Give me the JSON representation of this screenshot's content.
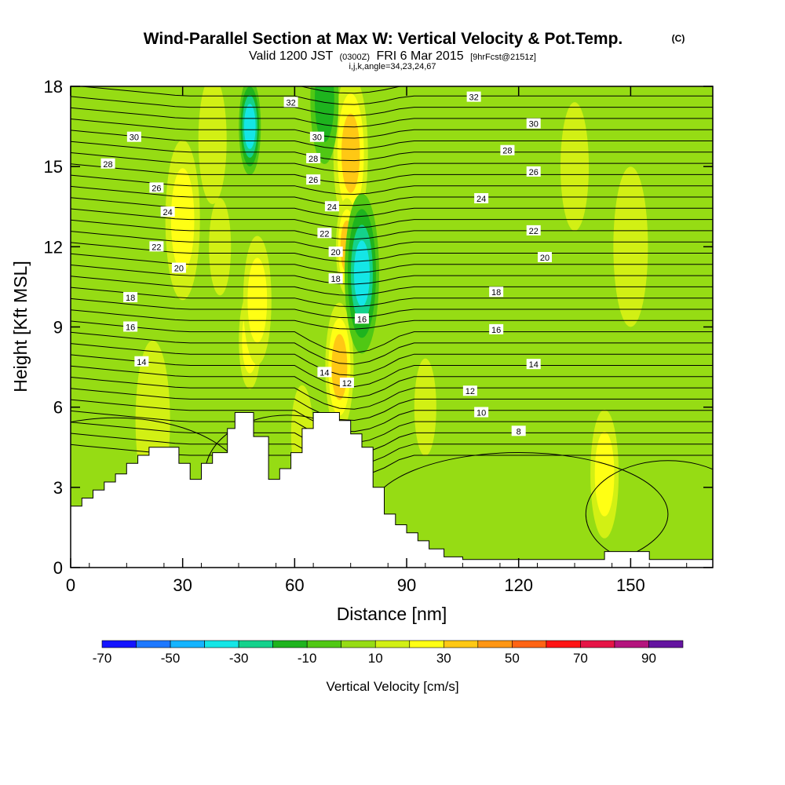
{
  "figure": {
    "title": "Wind-Parallel Section at Max W: Vertical Velocity & Pot.Temp.",
    "copyright": "(C)",
    "subtitle_main": "Valid 1200 JST",
    "subtitle_utc": "(0300Z)",
    "subtitle_date": "FRI 6 Mar 2015",
    "subtitle_fcst": "[9hrFcst@2151z]",
    "subtitle_indices": "i,j,k,angle=34,23,24,67"
  },
  "chart_data": {
    "type": "heatmap",
    "xlabel": "Distance [nm]",
    "ylabel": "Height [Kft MSL]",
    "xlim": [
      0,
      172
    ],
    "ylim": [
      0,
      18
    ],
    "x_ticks": [
      0,
      30,
      60,
      90,
      120,
      150
    ],
    "y_ticks": [
      0,
      3,
      6,
      9,
      12,
      15,
      18
    ],
    "colorbar": {
      "title": "Vertical Velocity [cm/s]",
      "tick_labels": [
        "-70",
        "-50",
        "-30",
        "-10",
        "10",
        "30",
        "50",
        "70",
        "90"
      ],
      "bounds": [
        -70,
        -60,
        -50,
        -40,
        -30,
        -20,
        -10,
        0,
        10,
        20,
        30,
        40,
        50,
        60,
        70,
        80,
        90
      ],
      "colors": [
        "#1414ff",
        "#1e78ff",
        "#14b4ff",
        "#14e6e6",
        "#14d28c",
        "#1eb41e",
        "#50c814",
        "#96dc14",
        "#d2f014",
        "#ffff14",
        "#ffc814",
        "#ff9614",
        "#ff6414",
        "#ff1414",
        "#e61446",
        "#b4147d",
        "#6414a0"
      ]
    },
    "vertical_velocity_features": [
      {
        "x": 48,
        "y": 8.5,
        "w": 15
      },
      {
        "x": 50,
        "y": 10.0,
        "w": 12
      },
      {
        "x": 75,
        "y": 15.5,
        "w": 25
      },
      {
        "x": 74,
        "y": 12.0,
        "w": 22
      },
      {
        "x": 72,
        "y": 7.5,
        "w": 28
      },
      {
        "x": 78,
        "y": 11.0,
        "w": -35
      },
      {
        "x": 48,
        "y": 16.5,
        "w": -32
      },
      {
        "x": 68,
        "y": 17.5,
        "w": -20
      },
      {
        "x": 30,
        "y": 13.0,
        "w": 12
      },
      {
        "x": 40,
        "y": 12.0,
        "w": 10
      },
      {
        "x": 38,
        "y": 16.0,
        "w": 8
      },
      {
        "x": 22,
        "y": 5.5,
        "w": 10
      },
      {
        "x": 62,
        "y": 5.0,
        "w": 10
      },
      {
        "x": 143,
        "y": 3.5,
        "w": 15
      },
      {
        "x": 150,
        "y": 12.0,
        "w": 6
      },
      {
        "x": 95,
        "y": 6.0,
        "w": 6
      },
      {
        "x": 135,
        "y": 15.0,
        "w": 6
      }
    ],
    "potential_temperature_labels": [
      {
        "label": "32",
        "x": 59,
        "y": 17.4
      },
      {
        "label": "32",
        "x": 108,
        "y": 17.6
      },
      {
        "label": "30",
        "x": 17,
        "y": 16.1
      },
      {
        "label": "30",
        "x": 66,
        "y": 16.1
      },
      {
        "label": "30",
        "x": 124,
        "y": 16.6
      },
      {
        "label": "28",
        "x": 10,
        "y": 15.1
      },
      {
        "label": "28",
        "x": 65,
        "y": 15.3
      },
      {
        "label": "28",
        "x": 117,
        "y": 15.6
      },
      {
        "label": "26",
        "x": 23,
        "y": 14.2
      },
      {
        "label": "26",
        "x": 65,
        "y": 14.5
      },
      {
        "label": "26",
        "x": 124,
        "y": 14.8
      },
      {
        "label": "24",
        "x": 26,
        "y": 13.3
      },
      {
        "label": "24",
        "x": 70,
        "y": 13.5
      },
      {
        "label": "24",
        "x": 110,
        "y": 13.8
      },
      {
        "label": "22",
        "x": 23,
        "y": 12.0
      },
      {
        "label": "22",
        "x": 68,
        "y": 12.5
      },
      {
        "label": "22",
        "x": 124,
        "y": 12.6
      },
      {
        "label": "20",
        "x": 29,
        "y": 11.2
      },
      {
        "label": "20",
        "x": 71,
        "y": 11.8
      },
      {
        "label": "20",
        "x": 127,
        "y": 11.6
      },
      {
        "label": "18",
        "x": 16,
        "y": 10.1
      },
      {
        "label": "18",
        "x": 71,
        "y": 10.8
      },
      {
        "label": "18",
        "x": 114,
        "y": 10.3
      },
      {
        "label": "16",
        "x": 16,
        "y": 9.0
      },
      {
        "label": "16",
        "x": 78,
        "y": 9.3
      },
      {
        "label": "16",
        "x": 114,
        "y": 8.9
      },
      {
        "label": "14",
        "x": 19,
        "y": 7.7
      },
      {
        "label": "14",
        "x": 68,
        "y": 7.3
      },
      {
        "label": "14",
        "x": 124,
        "y": 7.6
      },
      {
        "label": "12",
        "x": 74,
        "y": 6.9
      },
      {
        "label": "12",
        "x": 107,
        "y": 6.6
      },
      {
        "label": "10",
        "x": 110,
        "y": 5.8
      },
      {
        "label": "8",
        "x": 120,
        "y": 5.1
      }
    ],
    "terrain": [
      [
        0,
        2.3
      ],
      [
        3,
        2.6
      ],
      [
        6,
        2.9
      ],
      [
        9,
        3.2
      ],
      [
        12,
        3.5
      ],
      [
        15,
        3.9
      ],
      [
        18,
        4.2
      ],
      [
        21,
        4.5
      ],
      [
        27,
        4.5
      ],
      [
        29,
        3.9
      ],
      [
        32,
        3.3
      ],
      [
        35,
        3.9
      ],
      [
        38,
        4.3
      ],
      [
        42,
        5.2
      ],
      [
        44,
        5.8
      ],
      [
        48,
        5.8
      ],
      [
        49,
        4.9
      ],
      [
        52,
        4.9
      ],
      [
        53,
        3.3
      ],
      [
        56,
        3.7
      ],
      [
        59,
        4.3
      ],
      [
        62,
        5.2
      ],
      [
        65,
        5.8
      ],
      [
        71,
        5.8
      ],
      [
        72,
        5.5
      ],
      [
        75,
        5.0
      ],
      [
        78,
        4.5
      ],
      [
        81,
        3.0
      ],
      [
        84,
        2.0
      ],
      [
        87,
        1.6
      ],
      [
        90,
        1.3
      ],
      [
        93,
        1.0
      ],
      [
        96,
        0.7
      ],
      [
        100,
        0.4
      ],
      [
        105,
        0.3
      ],
      [
        108,
        0.3
      ],
      [
        112,
        0.3
      ],
      [
        130,
        0.3
      ],
      [
        134,
        0.3
      ],
      [
        138,
        0.3
      ],
      [
        143,
        0.6
      ],
      [
        150,
        0.6
      ],
      [
        155,
        0.3
      ],
      [
        172,
        0.3
      ]
    ]
  }
}
